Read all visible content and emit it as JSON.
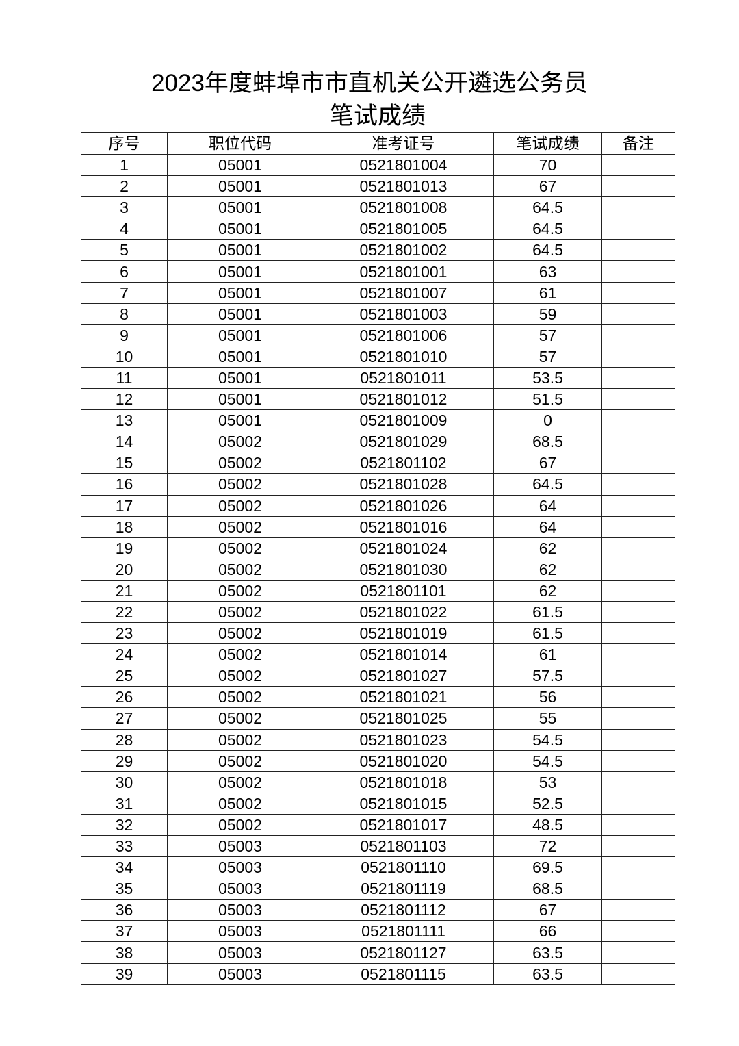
{
  "title_line1": "2023年度蚌埠市市直机关公开遴选公务员",
  "title_line2": "笔试成绩",
  "columns": [
    "序号",
    "职位代码",
    "准考证号",
    "笔试成绩",
    "备注"
  ],
  "rows": [
    [
      "1",
      "05001",
      "0521801004",
      "70",
      ""
    ],
    [
      "2",
      "05001",
      "0521801013",
      "67",
      ""
    ],
    [
      "3",
      "05001",
      "0521801008",
      "64.5",
      ""
    ],
    [
      "4",
      "05001",
      "0521801005",
      "64.5",
      ""
    ],
    [
      "5",
      "05001",
      "0521801002",
      "64.5",
      ""
    ],
    [
      "6",
      "05001",
      "0521801001",
      "63",
      ""
    ],
    [
      "7",
      "05001",
      "0521801007",
      "61",
      ""
    ],
    [
      "8",
      "05001",
      "0521801003",
      "59",
      ""
    ],
    [
      "9",
      "05001",
      "0521801006",
      "57",
      ""
    ],
    [
      "10",
      "05001",
      "0521801010",
      "57",
      ""
    ],
    [
      "11",
      "05001",
      "0521801011",
      "53.5",
      ""
    ],
    [
      "12",
      "05001",
      "0521801012",
      "51.5",
      ""
    ],
    [
      "13",
      "05001",
      "0521801009",
      "0",
      ""
    ],
    [
      "14",
      "05002",
      "0521801029",
      "68.5",
      ""
    ],
    [
      "15",
      "05002",
      "0521801102",
      "67",
      ""
    ],
    [
      "16",
      "05002",
      "0521801028",
      "64.5",
      ""
    ],
    [
      "17",
      "05002",
      "0521801026",
      "64",
      ""
    ],
    [
      "18",
      "05002",
      "0521801016",
      "64",
      ""
    ],
    [
      "19",
      "05002",
      "0521801024",
      "62",
      ""
    ],
    [
      "20",
      "05002",
      "0521801030",
      "62",
      ""
    ],
    [
      "21",
      "05002",
      "0521801101",
      "62",
      ""
    ],
    [
      "22",
      "05002",
      "0521801022",
      "61.5",
      ""
    ],
    [
      "23",
      "05002",
      "0521801019",
      "61.5",
      ""
    ],
    [
      "24",
      "05002",
      "0521801014",
      "61",
      ""
    ],
    [
      "25",
      "05002",
      "0521801027",
      "57.5",
      ""
    ],
    [
      "26",
      "05002",
      "0521801021",
      "56",
      ""
    ],
    [
      "27",
      "05002",
      "0521801025",
      "55",
      ""
    ],
    [
      "28",
      "05002",
      "0521801023",
      "54.5",
      ""
    ],
    [
      "29",
      "05002",
      "0521801020",
      "54.5",
      ""
    ],
    [
      "30",
      "05002",
      "0521801018",
      "53",
      ""
    ],
    [
      "31",
      "05002",
      "0521801015",
      "52.5",
      ""
    ],
    [
      "32",
      "05002",
      "0521801017",
      "48.5",
      ""
    ],
    [
      "33",
      "05003",
      "0521801103",
      "72",
      ""
    ],
    [
      "34",
      "05003",
      "0521801110",
      "69.5",
      ""
    ],
    [
      "35",
      "05003",
      "0521801119",
      "68.5",
      ""
    ],
    [
      "36",
      "05003",
      "0521801112",
      "67",
      ""
    ],
    [
      "37",
      "05003",
      "0521801111",
      "66",
      ""
    ],
    [
      "38",
      "05003",
      "0521801127",
      "63.5",
      ""
    ],
    [
      "39",
      "05003",
      "0521801115",
      "63.5",
      ""
    ]
  ]
}
